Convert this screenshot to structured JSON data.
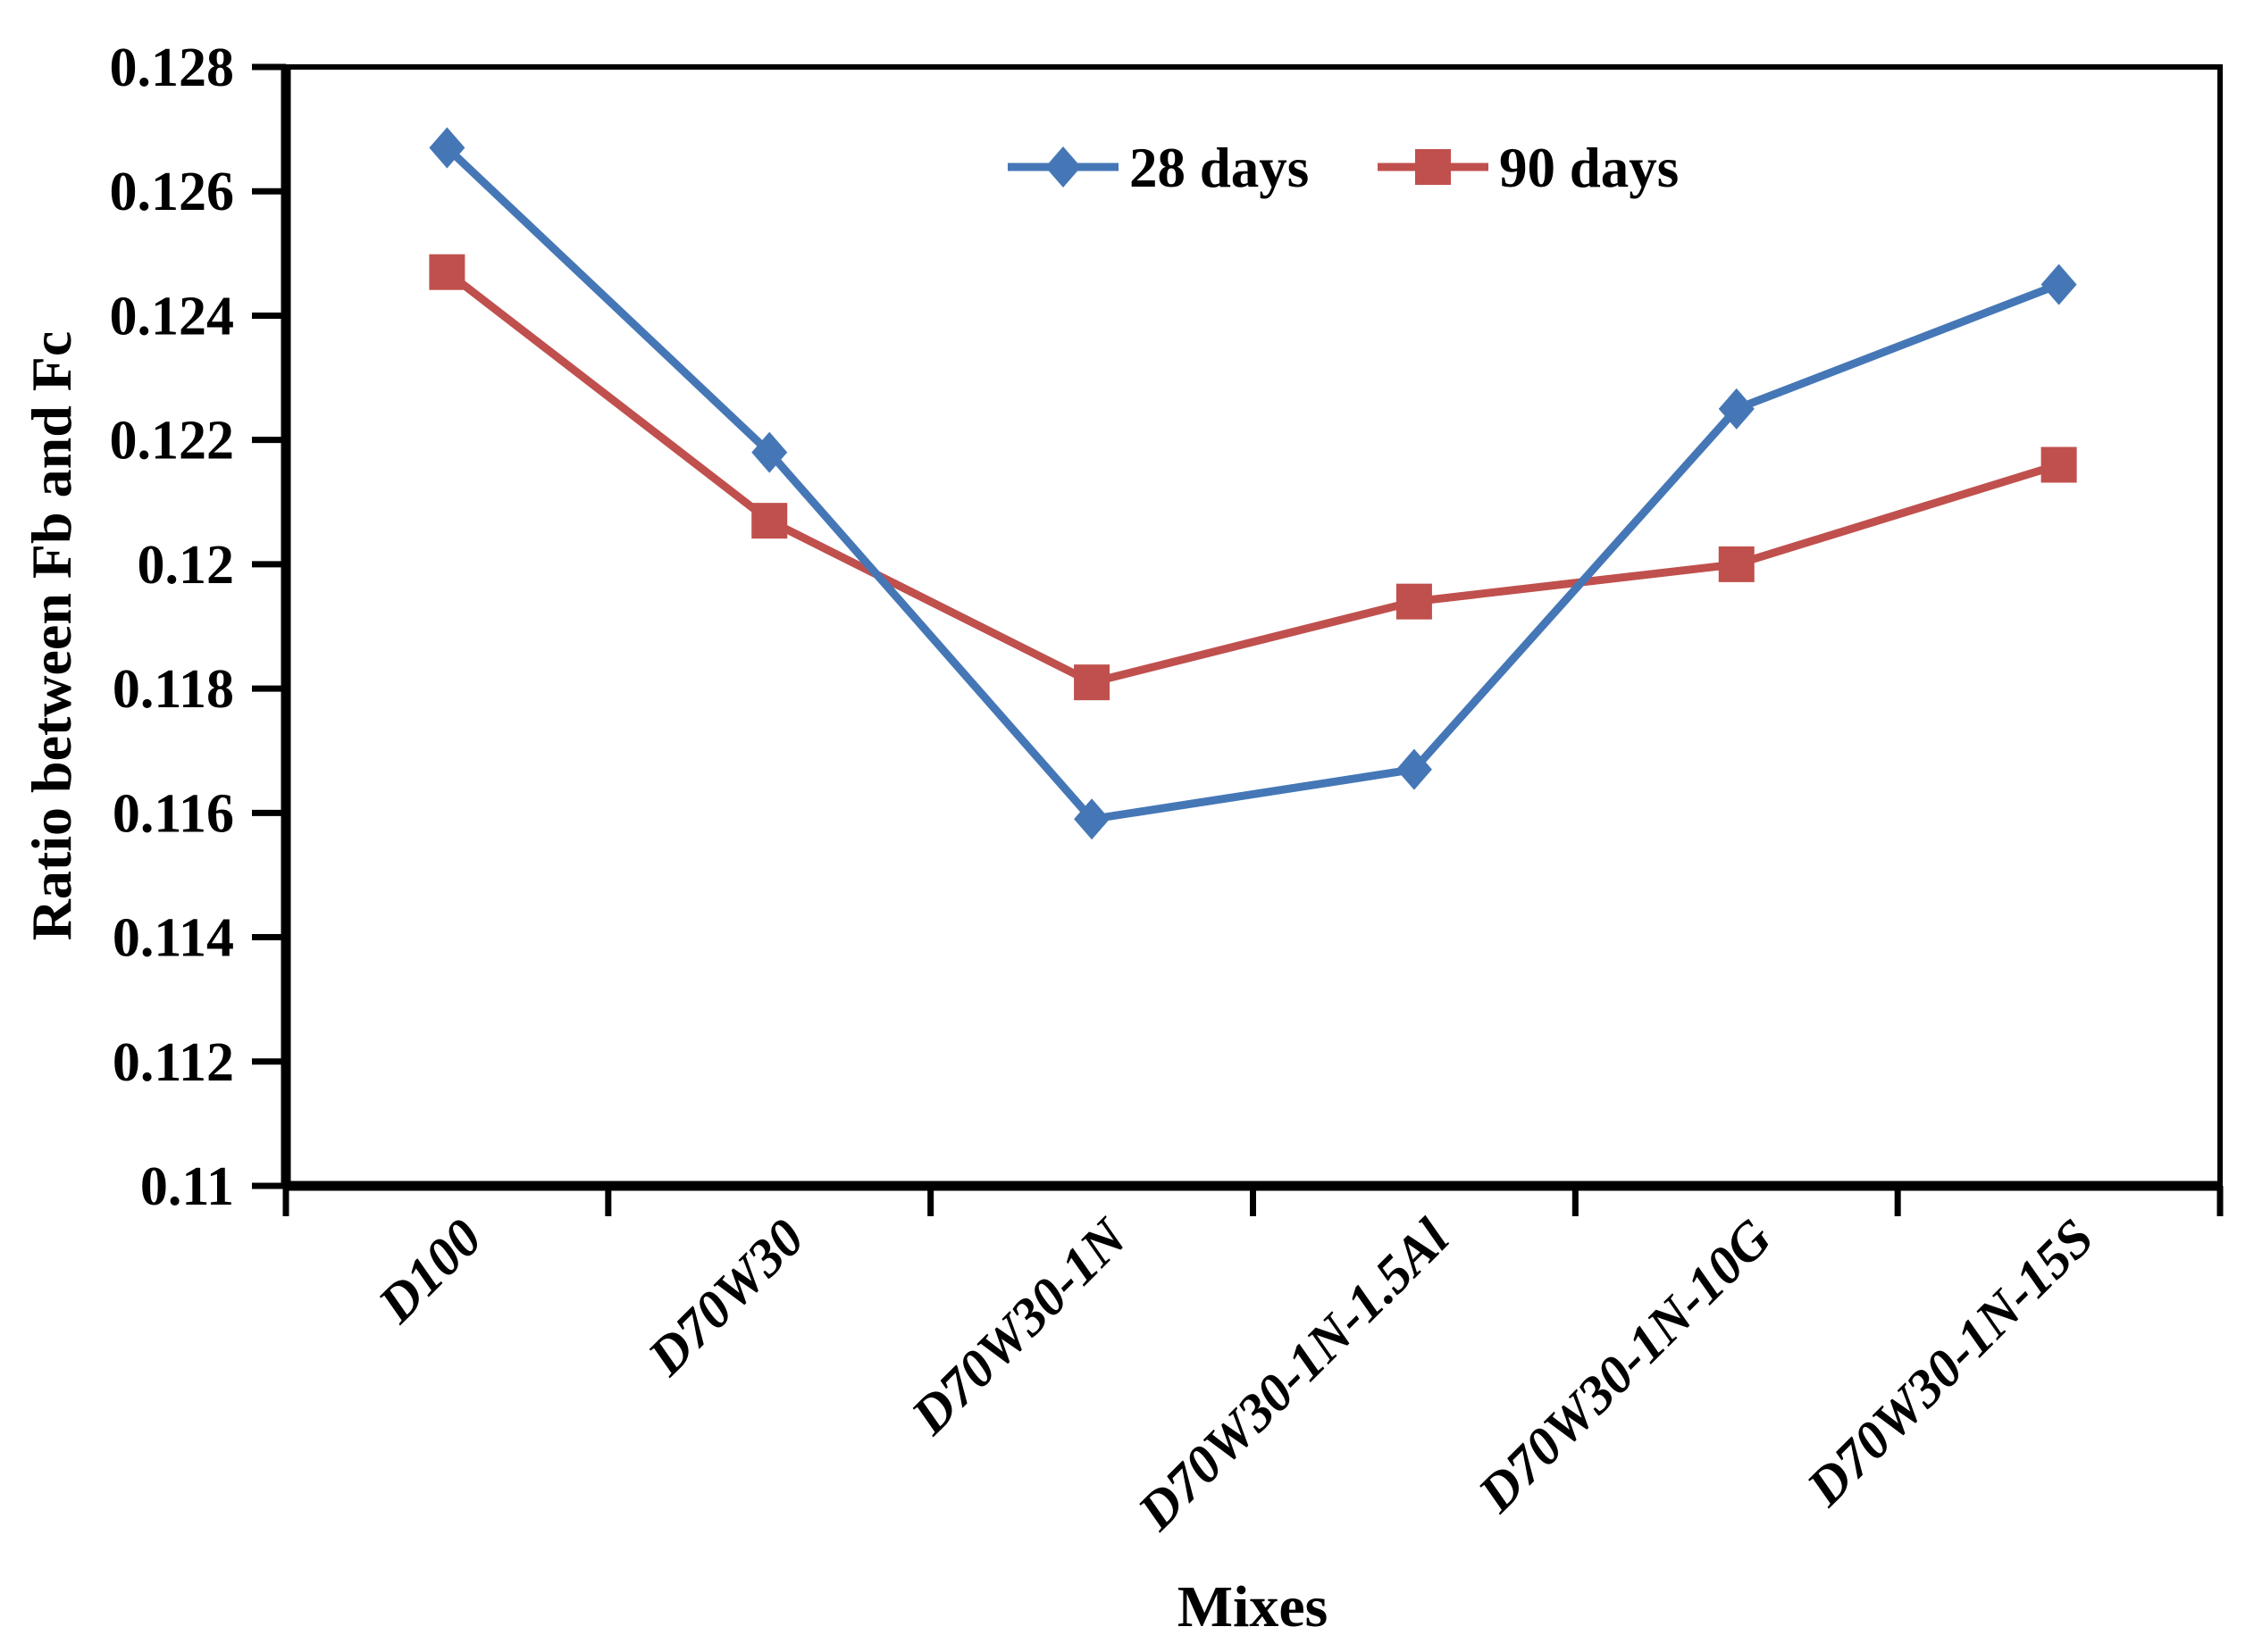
{
  "figure": {
    "background": "#ffffff",
    "axis_color": "#000000"
  },
  "chart_data": {
    "type": "line",
    "title": "",
    "xlabel": "Mixes",
    "ylabel": "Ratio between Fb and Fc",
    "categories": [
      "D100",
      "D70W30",
      "D70W30-1N",
      "D70W30-1N-1.5Al",
      "D70W30-1N-10G",
      "D70W30-1N-15S"
    ],
    "series": [
      {
        "name": "28 days",
        "color": "#4577B6",
        "marker": "diamond",
        "values": [
          0.1267,
          0.1218,
          0.1159,
          0.1167,
          0.1225,
          0.1245
        ]
      },
      {
        "name": "90 days",
        "color": "#C0504D",
        "marker": "square",
        "values": [
          0.1247,
          0.1207,
          0.1181,
          0.1194,
          0.12,
          0.1216
        ]
      }
    ],
    "ylim": [
      0.11,
      0.128
    ],
    "y_tick_values": [
      0.128,
      0.126,
      0.124,
      0.122,
      0.12,
      0.118,
      0.116,
      0.114,
      0.112,
      0.11
    ],
    "y_tick_labels": [
      "0.128",
      "0.126",
      "0.124",
      "0.122",
      "0.12",
      "0.118",
      "0.116",
      "0.114",
      "0.112",
      "0.11"
    ],
    "grid": false,
    "legend_position": "top-center",
    "legend_entries": [
      "28 days",
      "90 days"
    ]
  }
}
